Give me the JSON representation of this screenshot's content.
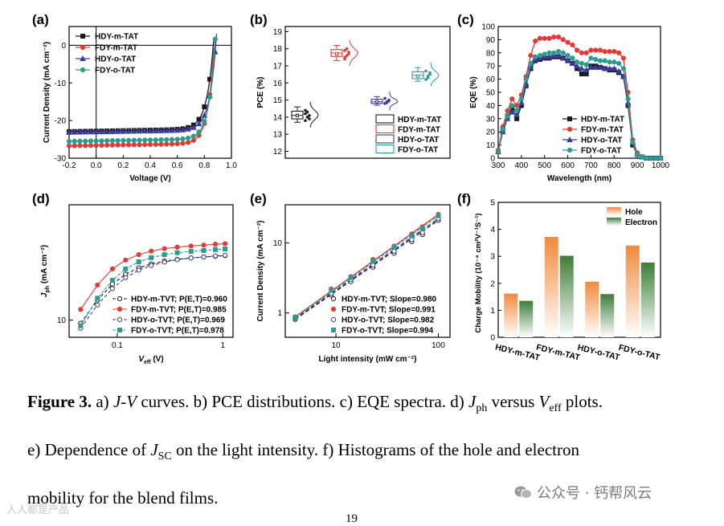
{
  "chart_data": [
    {
      "panel": "(a)",
      "type": "line",
      "xlabel": "Voltage (V)",
      "ylabel": "Current Density (mA cm⁻²)",
      "xlim": [
        -0.2,
        1.0
      ],
      "ylim": [
        -30,
        5
      ],
      "xticks": [
        -0.2,
        0.0,
        0.2,
        0.4,
        0.6,
        0.8,
        1.0
      ],
      "xtick_labels": [
        "-0.2",
        "0.0",
        "0.2",
        "0.4",
        "0.6",
        "0.8",
        "1.0"
      ],
      "yticks": [
        0,
        -10,
        -20,
        -30
      ],
      "ytick_labels": [
        "0",
        "-10",
        "-20",
        "-30"
      ],
      "legend": "top-left",
      "series": [
        {
          "name": "HDY-m-TAT",
          "color": "#1a1a1a",
          "jsc": -22.8,
          "voc": 0.867,
          "n": 0.05
        },
        {
          "name": "FDY-m-TAT",
          "color": "#e23a36",
          "jsc": -26.6,
          "voc": 0.872,
          "n": 0.045
        },
        {
          "name": "HDY-o-TAT",
          "color": "#3b3b9c",
          "jsc": -23.0,
          "voc": 0.885,
          "n": 0.048
        },
        {
          "name": "FDY-o-TAT",
          "color": "#2a9d8f",
          "jsc": -25.4,
          "voc": 0.878,
          "n": 0.046
        }
      ]
    },
    {
      "panel": "(b)",
      "type": "box",
      "ylabel": "PCE (%)",
      "ylim": [
        11.6,
        19.3
      ],
      "yticks": [
        12,
        13,
        14,
        15,
        16,
        17,
        18,
        19
      ],
      "ytick_labels": [
        "12",
        "13",
        "14",
        "15",
        "16",
        "17",
        "18",
        "19"
      ],
      "legend": "bottom-right",
      "series": [
        {
          "name": "HDY-m-TAT",
          "color": "#1a1a1a",
          "min": 13.7,
          "q1": 13.9,
          "median": 14.1,
          "q3": 14.35,
          "max": 14.6,
          "mean": 14.1,
          "points": [
            13.8,
            14.0,
            14.1,
            14.2,
            14.3,
            13.9,
            14.4
          ]
        },
        {
          "name": "FDY-m-TAT",
          "color": "#e23a36",
          "min": 17.3,
          "q1": 17.55,
          "median": 17.75,
          "q3": 17.95,
          "max": 18.2,
          "mean": 17.7,
          "points": [
            17.4,
            17.6,
            17.8,
            17.9,
            18.0,
            17.7,
            17.5
          ]
        },
        {
          "name": "HDY-o-TAT",
          "color": "#3b3b9c",
          "min": 14.7,
          "q1": 14.8,
          "median": 14.9,
          "q3": 15.05,
          "max": 15.2,
          "mean": 14.9,
          "points": [
            14.8,
            14.9,
            15.0,
            15.1,
            14.85,
            14.95
          ]
        },
        {
          "name": "FDY-o-TAT",
          "color": "#2a9d8f",
          "min": 16.1,
          "q1": 16.25,
          "median": 16.45,
          "q3": 16.65,
          "max": 16.9,
          "mean": 16.4,
          "points": [
            16.2,
            16.4,
            16.5,
            16.7,
            16.3,
            16.6
          ]
        }
      ]
    },
    {
      "panel": "(c)",
      "type": "line",
      "xlabel": "Wavelength (nm)",
      "ylabel": "EQE (%)",
      "xlim": [
        300,
        1000
      ],
      "ylim": [
        0,
        100
      ],
      "xticks": [
        300,
        400,
        500,
        600,
        700,
        800,
        900,
        1000
      ],
      "xtick_labels": [
        "300",
        "400",
        "500",
        "600",
        "700",
        "800",
        "900",
        "1000"
      ],
      "yticks": [
        0,
        10,
        20,
        30,
        40,
        50,
        60,
        70,
        80,
        90,
        100
      ],
      "ytick_labels": [
        "0",
        "10",
        "20",
        "30",
        "40",
        "50",
        "60",
        "70",
        "80",
        "90",
        "100"
      ],
      "legend": "bottom-right",
      "x": [
        300,
        320,
        340,
        360,
        380,
        400,
        420,
        440,
        460,
        480,
        500,
        520,
        540,
        560,
        580,
        600,
        620,
        640,
        660,
        680,
        700,
        720,
        740,
        760,
        780,
        800,
        820,
        840,
        860,
        880,
        900,
        920,
        940,
        960,
        980,
        1000
      ],
      "series": [
        {
          "name": "HDY-m-TAT",
          "color": "#1a1a1a",
          "values": [
            5,
            22,
            32,
            38,
            30,
            40,
            55,
            68,
            74,
            75,
            76,
            76,
            77,
            77,
            76,
            74,
            72,
            68,
            64,
            64,
            70,
            70,
            69,
            68,
            67,
            67,
            65,
            62,
            40,
            10,
            3,
            1,
            0,
            0,
            0,
            0
          ]
        },
        {
          "name": "FDY-m-TAT",
          "color": "#e23a36",
          "values": [
            6,
            24,
            36,
            45,
            40,
            48,
            62,
            78,
            89,
            91,
            91,
            91,
            92,
            92,
            90,
            88,
            86,
            82,
            80,
            80,
            82,
            82,
            82,
            81,
            81,
            81,
            80,
            76,
            50,
            14,
            4,
            1,
            0,
            0,
            0,
            0
          ]
        },
        {
          "name": "HDY-o-TAT",
          "color": "#3b3b9c",
          "values": [
            5,
            20,
            30,
            35,
            33,
            42,
            56,
            69,
            75,
            76,
            77,
            77,
            78,
            78,
            76,
            74,
            72,
            70,
            68,
            67,
            69,
            69,
            69,
            68,
            68,
            68,
            66,
            62,
            42,
            12,
            3,
            1,
            0,
            0,
            0,
            0
          ]
        },
        {
          "name": "FDY-o-TAT",
          "color": "#2a9d8f",
          "values": [
            5,
            22,
            32,
            40,
            36,
            45,
            60,
            72,
            77,
            78,
            79,
            80,
            80,
            81,
            80,
            78,
            76,
            73,
            72,
            71,
            76,
            75,
            74,
            74,
            73,
            73,
            72,
            68,
            45,
            12,
            3,
            1,
            0,
            0,
            0,
            0
          ]
        }
      ]
    },
    {
      "panel": "(d)",
      "type": "scatter",
      "xlabel": "V",
      "xlabel_sub": "eff",
      "xlabel_unit": " (V)",
      "ylabel": "J",
      "ylabel_sub": "ph",
      "ylabel_unit": " (mA cm⁻²)",
      "xscale": "log",
      "yscale": "log",
      "xlim": [
        0.035,
        1.25
      ],
      "ylim": [
        8,
        45
      ],
      "xticks": [
        0.1,
        1
      ],
      "xtick_labels": [
        "0.1",
        "1"
      ],
      "yticks": [
        10
      ],
      "ytick_labels": [
        "10"
      ],
      "legend": "bottom-right",
      "x": [
        0.045,
        0.065,
        0.09,
        0.12,
        0.16,
        0.21,
        0.28,
        0.37,
        0.5,
        0.66,
        0.85,
        1.05
      ],
      "series": [
        {
          "name": "HDY-m-TVT; P(E,T)=0.960",
          "color": "#1a1a1a",
          "values": [
            9.6,
            13.0,
            16.0,
            18.2,
            19.8,
            20.8,
            21.6,
            22.1,
            22.5,
            22.8,
            23.0,
            23.2
          ]
        },
        {
          "name": "FDY-m-TVT; P(E,T)=0.985",
          "color": "#e23a36",
          "values": [
            11.5,
            15.8,
            19.5,
            21.9,
            23.5,
            24.6,
            25.4,
            25.9,
            26.3,
            26.6,
            26.9,
            27.1
          ]
        },
        {
          "name": "HDY-o-TVT; P(E,T)=0.969",
          "color": "#3b3b9c",
          "values": [
            9.0,
            12.2,
            15.1,
            17.4,
            19.2,
            20.4,
            21.3,
            22.0,
            22.5,
            22.8,
            23.1,
            23.3
          ]
        },
        {
          "name": "FDY-o-TVT; P(E,T)=0.978",
          "color": "#2a9d8f",
          "values": [
            9.3,
            13.3,
            16.8,
            19.5,
            21.4,
            22.6,
            23.5,
            24.1,
            24.5,
            24.8,
            25.1,
            25.3
          ]
        }
      ]
    },
    {
      "panel": "(e)",
      "type": "scatter",
      "xlabel": "Light intensity (mW cm⁻²)",
      "ylabel": "Current Density (mA cm⁻²)",
      "xscale": "log",
      "yscale": "log",
      "xlim": [
        3.2,
        130
      ],
      "ylim": [
        0.45,
        35
      ],
      "xticks": [
        10,
        100
      ],
      "xtick_labels": [
        "10",
        "100"
      ],
      "yticks": [
        1,
        10
      ],
      "ytick_labels": [
        "1",
        "10"
      ],
      "legend": "bottom-right",
      "x": [
        4,
        9,
        14,
        23,
        37,
        55,
        70,
        100
      ],
      "series": [
        {
          "name": "HDY-m-TVT; Slope=0.980",
          "color": "#1a1a1a",
          "values": [
            0.81,
            1.8,
            2.8,
            4.5,
            7.1,
            10.4,
            13.1,
            21.0
          ]
        },
        {
          "name": "FDY-m-TVT; Slope=0.991",
          "color": "#e23a36",
          "values": [
            0.88,
            2.2,
            3.3,
            5.8,
            9.0,
            13.4,
            17.0,
            25.6
          ]
        },
        {
          "name": "HDY-o-TVT; Slope=0.982",
          "color": "#3b3b9c",
          "values": [
            0.84,
            1.9,
            3.0,
            4.8,
            7.6,
            11.1,
            14.0,
            22.2
          ]
        },
        {
          "name": "FDY-o-TVT; Slope=0.994",
          "color": "#2a9d8f",
          "values": [
            0.86,
            2.1,
            3.2,
            5.5,
            8.7,
            12.7,
            16.1,
            24.4
          ]
        }
      ]
    },
    {
      "panel": "(f)",
      "type": "bar",
      "ylabel": "Charge Mobility (10⁻⁴ cm²V⁻¹S⁻¹)",
      "ylim": [
        0,
        5
      ],
      "yticks": [
        0,
        1,
        2,
        3,
        4,
        5
      ],
      "ytick_labels": [
        "0",
        "1",
        "2",
        "3",
        "4",
        "5"
      ],
      "categories": [
        "HDY-m-TAT",
        "FDY-m-TAT",
        "HDY-o-TAT",
        "FDY-o-TAT"
      ],
      "legend": "top-right",
      "series": [
        {
          "name": "Hole",
          "color": "#f08a3c",
          "values": [
            1.62,
            3.72,
            2.06,
            3.4
          ]
        },
        {
          "name": "Electron",
          "color": "#3f7d3a",
          "values": [
            1.35,
            3.02,
            1.6,
            2.77
          ]
        }
      ]
    }
  ],
  "caption": {
    "line1_bold": "Figure 3.",
    "line1_a": " a) ",
    "line1_jv_j": "J",
    "line1_jv_dash": "-",
    "line1_jv_v": "V",
    "line1_b": " curves. b) PCE distributions. c) EQE spectra. d) ",
    "line1_jph_j": "J",
    "line1_jph_sub": "ph",
    "line1_c": " versus ",
    "line1_veff_v": "V",
    "line1_veff_sub": "eff",
    "line1_d": " plots.",
    "line2_a": "e) Dependence of ",
    "line2_j": "J",
    "line2_sub": "SC",
    "line2_b": " on the light intensity. f) Histograms of the hole and electron",
    "line3": "mobility for the blend films."
  },
  "page_number": "19",
  "watermark_right": "公众号 · 钙帮风云",
  "watermark_left": "人人都是产品"
}
